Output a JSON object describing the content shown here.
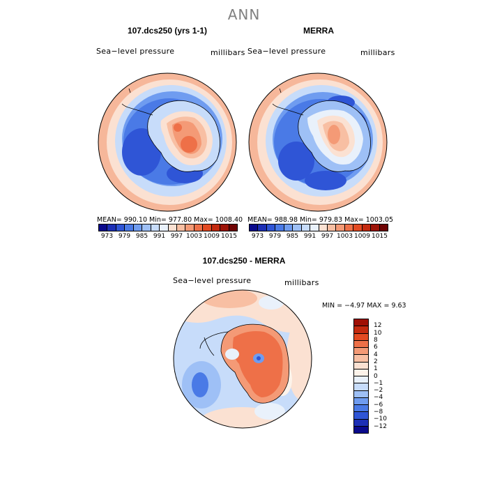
{
  "figure_title": "ANN",
  "panels": [
    {
      "title": "107.dcs250 (yrs 1-1)",
      "field_label": "Sea−level pressure",
      "units_label": "millibars",
      "stats": "MEAN= 990.10   Min= 977.80   Max= 1008.40"
    },
    {
      "title": "MERRA",
      "field_label": "Sea−level pressure",
      "units_label": "millibars",
      "stats": "MEAN= 988.98   Min= 979.83   Max= 1003.05"
    }
  ],
  "diff_panel": {
    "title": "107.dcs250 - MERRA",
    "field_label": "Sea−level pressure",
    "units_label": "millibars",
    "stats": "MIN =  −4.97 MAX =   9.63"
  },
  "colorbar_abs": {
    "colors": [
      "#0a0a8c",
      "#1c2fb6",
      "#2f55d6",
      "#4a7ae6",
      "#6f9cf0",
      "#9ec0f6",
      "#c7dcfa",
      "#e9f1fb",
      "#fbe1d2",
      "#f8bfa3",
      "#f49a76",
      "#ee7048",
      "#e34a22",
      "#c42a0f",
      "#9c1206",
      "#6e0303"
    ],
    "ticks": [
      "973",
      "979",
      "985",
      "991",
      "997",
      "1003",
      "1009",
      "1015"
    ]
  },
  "colorbar_diff": {
    "colors_top_to_bottom": [
      "#a01005",
      "#c42a0f",
      "#e34a22",
      "#ee7048",
      "#f49a76",
      "#f8bfa3",
      "#fbe1d2",
      "#fdf3ea",
      "#e9f1fb",
      "#c7dcfa",
      "#9ec0f6",
      "#6f9cf0",
      "#4a7ae6",
      "#2f55d6",
      "#1c2fb6",
      "#0a0a8c"
    ],
    "ticks": [
      "12",
      "10",
      "8",
      "6",
      "4",
      "2",
      "1",
      "0",
      "−1",
      "−2",
      "−4",
      "−6",
      "−8",
      "−10",
      "−12"
    ]
  }
}
